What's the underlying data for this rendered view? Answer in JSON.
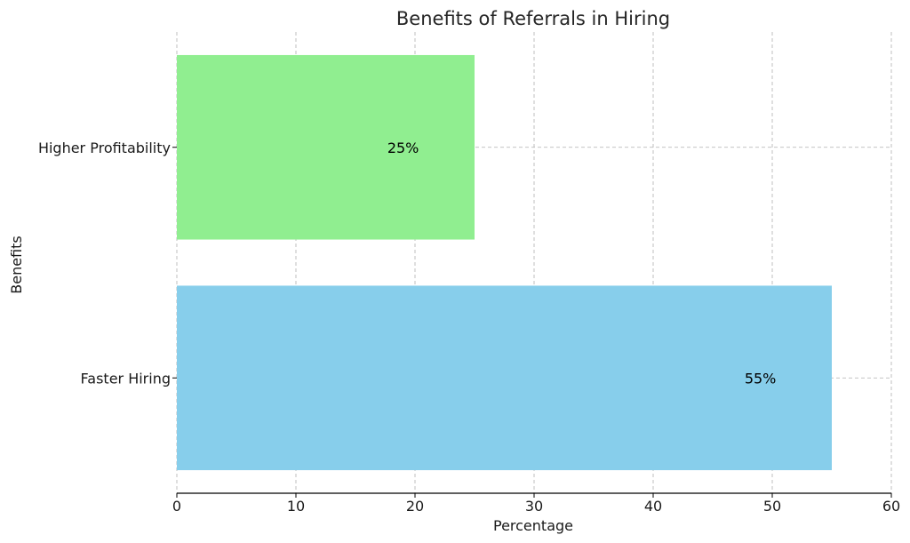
{
  "chart_data": {
    "type": "bar",
    "orientation": "horizontal",
    "title": "Benefits of Referrals in Hiring",
    "xlabel": "Percentage",
    "ylabel": "Benefits",
    "categories": [
      "Faster Hiring",
      "Higher Profitability"
    ],
    "values": [
      55,
      25
    ],
    "data_labels": [
      "55%",
      "25%"
    ],
    "colors": [
      "#87CEEB",
      "#90EE90"
    ],
    "xlim": [
      0,
      60
    ],
    "xticks": [
      0,
      10,
      20,
      30,
      40,
      50,
      60
    ],
    "xtick_labels": [
      "0",
      "10",
      "20",
      "30",
      "40",
      "50",
      "60"
    ],
    "grid": true
  }
}
